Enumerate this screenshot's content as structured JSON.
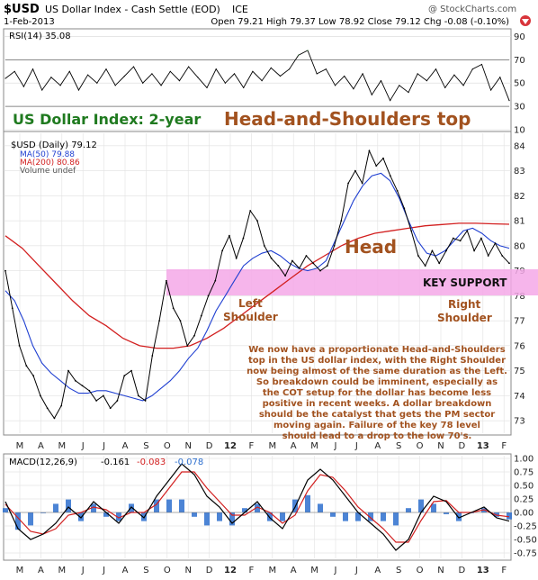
{
  "header": {
    "symbol": "$USD",
    "index_name": "US Dollar Index - Cash Settle (EOD)",
    "exchange": "ICE",
    "date": "1-Feb-2013",
    "watermark": "@ StockCharts.com",
    "ohlc": "Open 79.21  High 79.37  Low 78.92  Close 79.12  Chg -0.08 (-0.10%)"
  },
  "colors": {
    "rsi_line": "#000000",
    "rsi_fill_over": "#2e7d32",
    "price_line": "#000000",
    "ma50": "#1f3fd1",
    "ma200": "#d21f1f",
    "support_band": "#f5a8e8",
    "macd_line": "#000000",
    "signal_line": "#d21f1f",
    "histogram": "#2d6fce",
    "chart_title_green": "#1f7a1f",
    "chart_title_brown": "#a2521f",
    "annotation_text": "#a2521f"
  },
  "chart_data": [
    {
      "type": "line",
      "panel": "rsi",
      "label": "RSI(14) 35.08",
      "ylim": [
        10,
        95
      ],
      "yticks": [
        "90",
        "70",
        "50",
        "30",
        "10"
      ],
      "reference_lines": [
        70,
        30
      ],
      "values": [
        54,
        60,
        47,
        62,
        44,
        55,
        48,
        60,
        44,
        57,
        50,
        62,
        48,
        56,
        64,
        50,
        58,
        48,
        60,
        52,
        64,
        55,
        46,
        62,
        50,
        58,
        46,
        60,
        52,
        63,
        56,
        62,
        74,
        78,
        58,
        62,
        48,
        56,
        45,
        58,
        40,
        52,
        35,
        48,
        42,
        58,
        52,
        62,
        46,
        57,
        48,
        62,
        66,
        44,
        55,
        35
      ]
    },
    {
      "type": "line",
      "panel": "price",
      "title": "US Dollar Index: 2-year",
      "subtitle": "Head-and-Shoulders top",
      "series_labels": [
        "$USD (Daily) 79.12",
        "MA(50) 79.88",
        "MA(200) 80.86",
        "Volume undef"
      ],
      "ylim": [
        72.5,
        84.5
      ],
      "yticks": [
        "84",
        "83",
        "82",
        "81",
        "80",
        "79",
        "78",
        "77",
        "76",
        "75",
        "74",
        "73"
      ],
      "x_labels": [
        "M",
        "A",
        "M",
        "J",
        "J",
        "A",
        "S",
        "O",
        "N",
        "D",
        "12",
        "F",
        "M",
        "A",
        "M",
        "J",
        "J",
        "A",
        "S",
        "O",
        "N",
        "D",
        "13",
        "F"
      ],
      "series": [
        {
          "name": "$USD (Daily)",
          "values": [
            79.0,
            77.5,
            76.0,
            75.2,
            74.8,
            74.0,
            73.5,
            73.1,
            73.6,
            75.0,
            74.6,
            74.4,
            74.2,
            73.8,
            74.0,
            73.5,
            73.8,
            74.8,
            75.0,
            74.0,
            73.8,
            75.6,
            77.0,
            78.6,
            77.5,
            77.0,
            76.0,
            76.4,
            77.2,
            78.0,
            78.6,
            79.8,
            80.4,
            79.5,
            80.3,
            81.4,
            81.0,
            80.0,
            79.5,
            79.2,
            78.8,
            79.4,
            79.1,
            79.6,
            79.3,
            79.0,
            79.2,
            80.0,
            81.0,
            82.5,
            83.0,
            82.5,
            83.8,
            83.2,
            83.5,
            82.8,
            82.2,
            81.5,
            80.6,
            79.6,
            79.2,
            79.8,
            79.3,
            79.8,
            80.3,
            80.2,
            80.6,
            79.8,
            80.3,
            79.6,
            80.1,
            79.6,
            79.3
          ]
        },
        {
          "name": "MA(50)",
          "values": [
            78.2,
            77.8,
            77.0,
            76.0,
            75.3,
            74.9,
            74.6,
            74.3,
            74.1,
            74.1,
            74.2,
            74.2,
            74.1,
            74.0,
            73.9,
            73.8,
            74.0,
            74.3,
            74.6,
            75.0,
            75.5,
            75.9,
            76.6,
            77.4,
            78.0,
            78.6,
            79.2,
            79.5,
            79.7,
            79.8,
            79.6,
            79.3,
            79.1,
            79.0,
            79.1,
            79.4,
            80.2,
            81.0,
            81.8,
            82.4,
            82.8,
            82.9,
            82.6,
            81.9,
            81.0,
            80.2,
            79.7,
            79.6,
            79.8,
            80.2,
            80.6,
            80.7,
            80.5,
            80.2,
            80.0,
            79.9
          ]
        },
        {
          "name": "MA(200)",
          "values": [
            80.4,
            79.9,
            79.2,
            78.5,
            77.8,
            77.2,
            76.8,
            76.3,
            76.0,
            75.9,
            75.9,
            76.0,
            76.3,
            76.7,
            77.2,
            77.7,
            78.2,
            78.7,
            79.2,
            79.6,
            80.0,
            80.3,
            80.5,
            80.6,
            80.7,
            80.8,
            80.85,
            80.9,
            80.9,
            80.88,
            80.86
          ]
        }
      ]
    },
    {
      "type": "line",
      "panel": "macd",
      "label": "MACD(12,26,9)",
      "values_text": [
        "-0.161",
        "-0.083",
        "-0.078"
      ],
      "ylim": [
        -0.85,
        1.05
      ],
      "yticks": [
        "1.00",
        "0.75",
        "0.50",
        "0.25",
        "0.00",
        "-0.25",
        "-0.50",
        "-0.75"
      ],
      "x_labels": [
        "M",
        "A",
        "M",
        "J",
        "J",
        "A",
        "S",
        "O",
        "N",
        "D",
        "12",
        "F",
        "M",
        "A",
        "M",
        "J",
        "J",
        "A",
        "S",
        "O",
        "N",
        "D",
        "13",
        "F"
      ],
      "series": [
        {
          "name": "MACD",
          "values": [
            0.2,
            -0.3,
            -0.5,
            -0.4,
            -0.2,
            0.1,
            -0.1,
            0.2,
            0.0,
            -0.2,
            0.1,
            -0.1,
            0.3,
            0.6,
            0.9,
            0.7,
            0.3,
            0.1,
            -0.2,
            0.0,
            0.2,
            -0.1,
            -0.3,
            0.1,
            0.6,
            0.8,
            0.6,
            0.3,
            0.0,
            -0.2,
            -0.4,
            -0.7,
            -0.5,
            0.0,
            0.3,
            0.2,
            -0.1,
            0.0,
            0.1,
            -0.1,
            -0.16
          ]
        },
        {
          "name": "Signal",
          "values": [
            0.15,
            -0.1,
            -0.35,
            -0.4,
            -0.3,
            -0.05,
            0.0,
            0.1,
            0.05,
            -0.1,
            0.0,
            0.0,
            0.15,
            0.45,
            0.75,
            0.75,
            0.45,
            0.2,
            -0.05,
            -0.05,
            0.1,
            0.0,
            -0.2,
            -0.05,
            0.4,
            0.7,
            0.65,
            0.4,
            0.1,
            -0.1,
            -0.3,
            -0.55,
            -0.55,
            -0.15,
            0.2,
            0.22,
            0.0,
            0.0,
            0.05,
            -0.05,
            -0.08
          ]
        }
      ]
    }
  ],
  "annotations": {
    "head": "Head",
    "left_shoulder": [
      "Left",
      "Shoulder"
    ],
    "right_shoulder": [
      "Right",
      "Shoulder"
    ],
    "key_support": "KEY SUPPORT",
    "commentary": [
      "We now have a proportionate Head-and-Shoulders",
      "top in the US dollar index, with the Right Shoulder",
      "now being almost of the same duration as the Left.",
      "So breakdown could be imminent, especially as",
      "the COT setup for the dollar has become less",
      "positive in recent weeks. A dollar breakdown",
      "should be the catalyst that gets the PM sector",
      "moving again. Failure of the key 78 level",
      "should lead to a drop to the low 70's."
    ]
  }
}
